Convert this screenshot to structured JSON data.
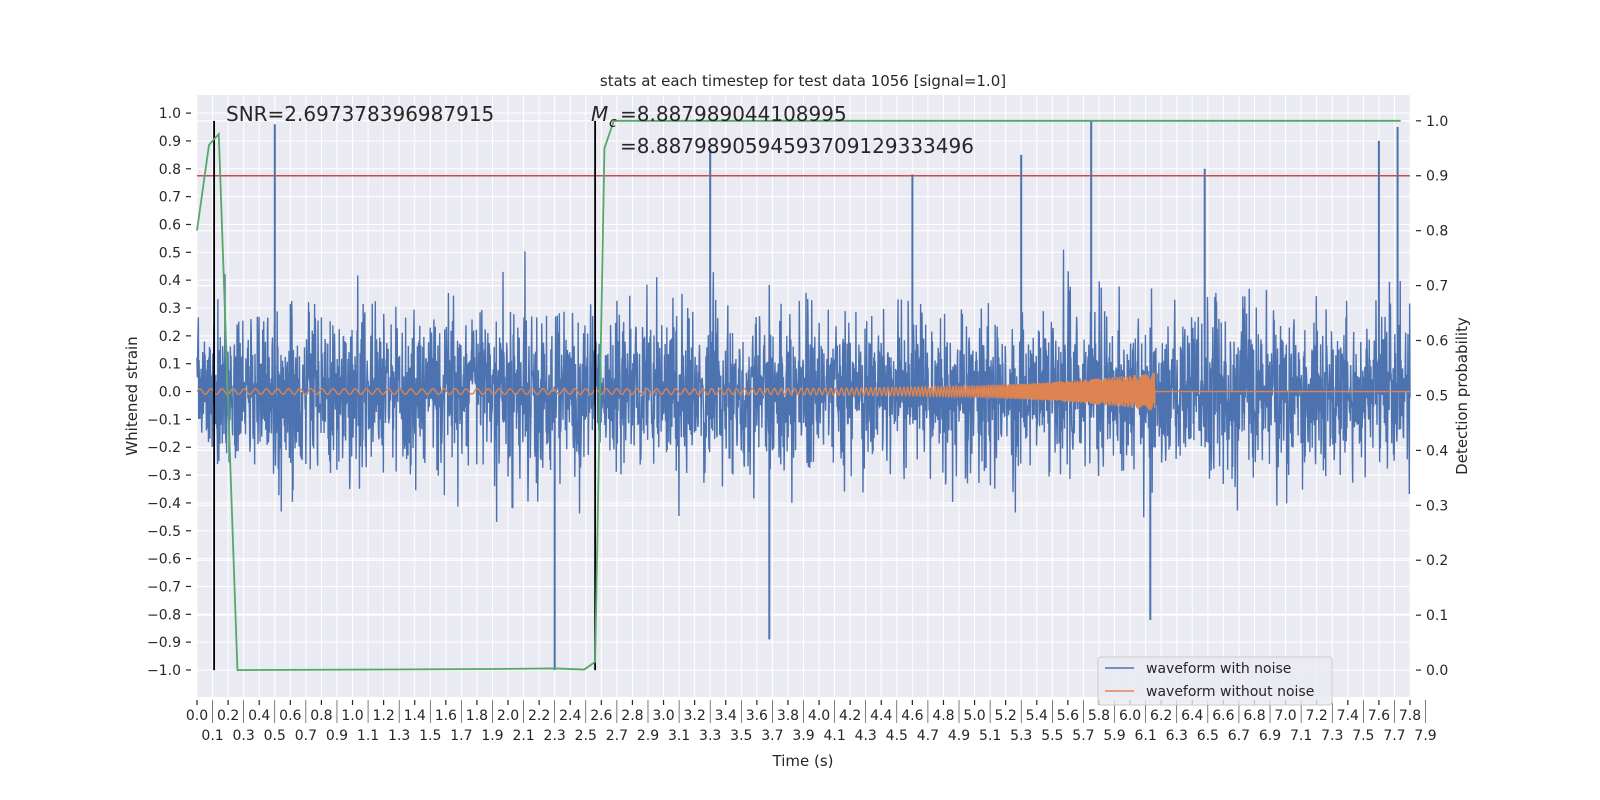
{
  "chart_data": {
    "type": "line",
    "title": "stats at each timestep for test data 1056 [signal=1.0]",
    "xlabel": "Time (s)",
    "ylabel": "Whitened strain",
    "ylabel_right": "Detection probability",
    "xlim": [
      0,
      7.8
    ],
    "ylim": [
      -1.097,
      1.065
    ],
    "ylim_right": [
      -0.049,
      1.047
    ],
    "grid": true,
    "legend_position": "lower-right",
    "xticks": [
      "0.0",
      "0.1",
      "0.2",
      "0.3",
      "0.4",
      "0.5",
      "0.6",
      "0.7",
      "0.8",
      "0.9",
      "1.0",
      "1.1",
      "1.2",
      "1.3",
      "1.4",
      "1.5",
      "1.6",
      "1.7",
      "1.8",
      "1.9",
      "2.0",
      "2.1",
      "2.2",
      "2.3",
      "2.4",
      "2.5",
      "2.6",
      "2.7",
      "2.8",
      "2.9",
      "3.0",
      "3.1",
      "3.2",
      "3.3",
      "3.4",
      "3.5",
      "3.6",
      "3.7",
      "3.8",
      "3.9",
      "4.0",
      "4.1",
      "4.2",
      "4.3",
      "4.4",
      "4.5",
      "4.6",
      "4.7",
      "4.8",
      "4.9",
      "5.0",
      "5.1",
      "5.2",
      "5.3",
      "5.4",
      "5.5",
      "5.6",
      "5.7",
      "5.8",
      "5.9",
      "6.0",
      "6.1",
      "6.2",
      "6.3",
      "6.4",
      "6.5",
      "6.6",
      "6.7",
      "6.8",
      "6.9",
      "7.0",
      "7.1",
      "7.2",
      "7.3",
      "7.4",
      "7.5",
      "7.6",
      "7.7",
      "7.8",
      "7.9"
    ],
    "yticks_left": [
      "1.0",
      "0.9",
      "0.8",
      "0.7",
      "0.6",
      "0.5",
      "0.4",
      "0.3",
      "0.2",
      "0.1",
      "0.0",
      "−0.1",
      "−0.2",
      "−0.3",
      "−0.4",
      "−0.5",
      "−0.6",
      "−0.7",
      "−0.8",
      "−0.9",
      "−1.0"
    ],
    "yticks_left_values": [
      1.0,
      0.9,
      0.8,
      0.7,
      0.6,
      0.5,
      0.4,
      0.3,
      0.2,
      0.1,
      0.0,
      -0.1,
      -0.2,
      -0.3,
      -0.4,
      -0.5,
      -0.6,
      -0.7,
      -0.8,
      -0.9,
      -1.0
    ],
    "yticks_right": [
      "1.0",
      "0.9",
      "0.8",
      "0.7",
      "0.6",
      "0.5",
      "0.4",
      "0.3",
      "0.2",
      "0.1",
      "0.0"
    ],
    "yticks_right_values": [
      1.0,
      0.9,
      0.8,
      0.7,
      0.6,
      0.5,
      0.4,
      0.3,
      0.2,
      0.1,
      0.0
    ],
    "annotations": {
      "snr": "SNR=2.697378396987915",
      "mc_1": "=8.887989044108995",
      "mc_2": "=8.8879890594593709129333496",
      "mc_symbol": "M",
      "mc_sub": "c"
    },
    "series": [
      {
        "name": "waveform with noise",
        "color": "#4C72B0",
        "axis": "left",
        "noise_std": 0.14,
        "spike_peaks": [
          [
            0.5,
            0.96
          ],
          [
            3.3,
            0.87
          ],
          [
            4.6,
            0.78
          ],
          [
            5.3,
            0.85
          ],
          [
            5.75,
            0.97
          ],
          [
            6.48,
            0.8
          ],
          [
            7.6,
            0.9
          ],
          [
            7.72,
            0.95
          ],
          [
            2.3,
            -1.0
          ],
          [
            3.68,
            -0.89
          ],
          [
            6.13,
            -0.82
          ]
        ]
      },
      {
        "name": "waveform without noise",
        "color": "#DD8452",
        "axis": "left",
        "chirp_end": 6.16,
        "amplitude_start": 0.01,
        "amplitude_end": 0.07
      },
      {
        "name": "detection probability",
        "color": "#55A868",
        "axis": "right",
        "x": [
          0.0,
          0.077,
          0.14,
          0.26,
          1.9,
          2.3,
          2.49,
          2.56,
          2.62,
          2.68,
          7.74
        ],
        "y": [
          0.8,
          0.956,
          0.976,
          0.0,
          0.002,
          0.003,
          0.001,
          0.015,
          0.95,
          1.0,
          1.0
        ]
      },
      {
        "name": "threshold",
        "color": "#C44E52",
        "axis": "right",
        "y": 0.9
      },
      {
        "name": "marker lines",
        "color": "#000000",
        "axis": "right",
        "x": [
          0.11,
          2.56
        ]
      }
    ],
    "legend": [
      "waveform with noise",
      "waveform without noise"
    ]
  }
}
